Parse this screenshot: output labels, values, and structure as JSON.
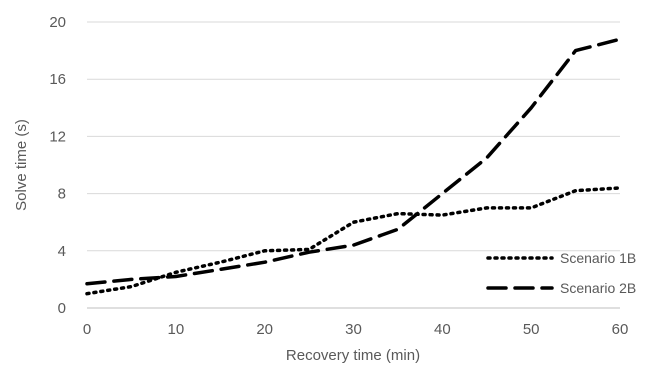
{
  "chart_data": {
    "type": "line",
    "title": "",
    "xlabel": "Recovery time (min)",
    "ylabel": "Solve time (s)",
    "xlim": [
      0,
      60
    ],
    "ylim": [
      0,
      20
    ],
    "x_ticks": [
      "0",
      "10",
      "20",
      "30",
      "40",
      "50",
      "60"
    ],
    "y_ticks": [
      "0",
      "4",
      "8",
      "12",
      "16",
      "20"
    ],
    "grid": "horizontal",
    "legend": "bottom-right",
    "series": [
      {
        "name": "Scenario 1B",
        "style": "dotted",
        "color": "#000000",
        "x": [
          0,
          5,
          10,
          15,
          20,
          25,
          30,
          35,
          40,
          45,
          50,
          55,
          60
        ],
        "y": [
          1,
          1.5,
          2.5,
          3.2,
          4,
          4.1,
          6,
          6.6,
          6.5,
          7,
          7,
          8.2,
          8.4
        ]
      },
      {
        "name": "Scenario 2B",
        "style": "dashed",
        "color": "#000000",
        "x": [
          0,
          5,
          10,
          15,
          20,
          25,
          30,
          35,
          40,
          45,
          50,
          55,
          60
        ],
        "y": [
          1.7,
          2,
          2.2,
          2.7,
          3.2,
          3.9,
          4.4,
          5.5,
          8,
          10.5,
          14,
          18,
          18.8
        ]
      }
    ]
  }
}
